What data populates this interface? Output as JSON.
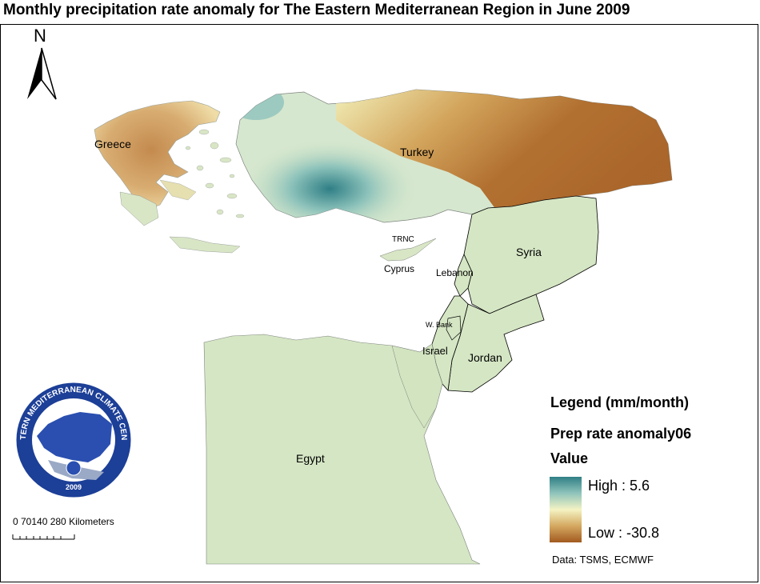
{
  "title": "Monthly precipitation rate anomaly for The Eastern Mediterranean Region in June 2009",
  "north_arrow": "N",
  "countries": {
    "greece": "Greece",
    "turkey": "Turkey",
    "trnc": "TRNC",
    "cyprus": "Cyprus",
    "syria": "Syria",
    "lebanon": "Lebanon",
    "wbank": "W. Bank",
    "israel": "Israel",
    "jordan": "Jordan",
    "egypt": "Egypt"
  },
  "legend": {
    "title": "Legend (mm/month)",
    "layer": "Prep rate anomaly06",
    "value_label": "Value",
    "high": "High : 5.6",
    "low": "Low : -30.8",
    "high_value": 5.6,
    "low_value": -30.8
  },
  "scale": {
    "label": "0  70140    280 Kilometers"
  },
  "source": "Data:  TSMS, ECMWF",
  "logo": {
    "ring_text": "EASTERN MEDITERRANEAN CLIMATE CENTRE",
    "year": "2009"
  },
  "colors": {
    "high": "#2f7f86",
    "mid": "#f4f3c3",
    "low": "#a25a1f",
    "land_default": "#d8e6c2"
  }
}
